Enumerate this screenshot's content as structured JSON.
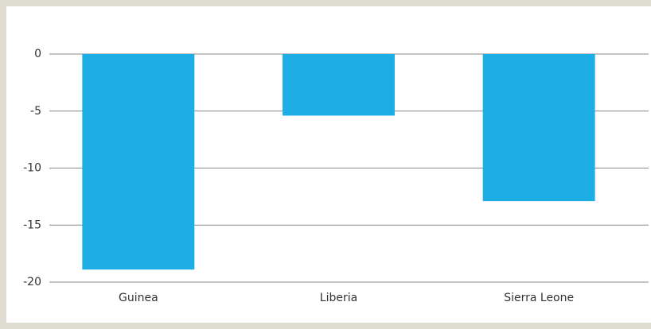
{
  "chart_data": {
    "type": "bar",
    "categories": [
      "Guinea",
      "Liberia",
      "Sierra Leone"
    ],
    "values": [
      -18.9,
      -5.4,
      -12.9
    ],
    "color": "#1eaee6",
    "ylim": [
      -20,
      0
    ],
    "yticks": [
      0,
      -5,
      -10,
      -15,
      -20
    ],
    "grid": true
  }
}
